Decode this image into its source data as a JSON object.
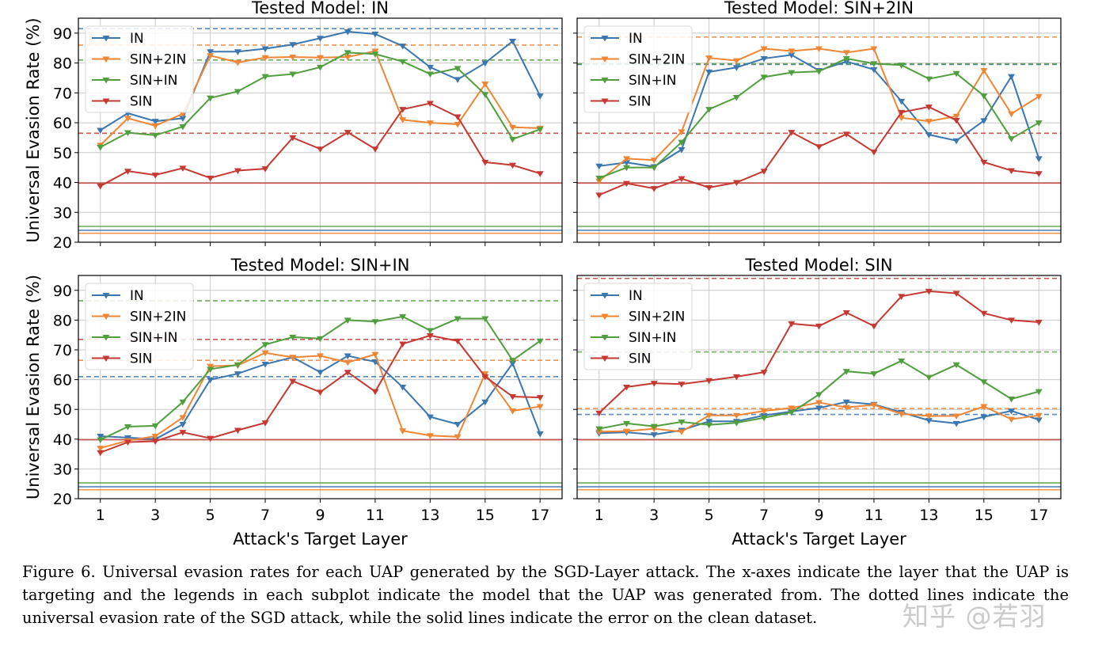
{
  "figure": {
    "x_label": "Attack's Target Layer",
    "y_label": "Universal Evasion Rate (%)",
    "caption": "Figure 6. Universal evasion rates for each UAP generated by the SGD-Layer attack. The x-axes indicate the layer that the UAP is targeting and the legends in each subplot indicate the model that the UAP was generated from. The dotted lines indicate the universal evasion rate of the SGD attack, while the solid lines indicate the error on the clean dataset.",
    "watermark": "知乎 @若羽"
  },
  "colors": {
    "IN": "#3b76af",
    "SIN+2IN": "#ef8636",
    "SIN+IN": "#519e3e",
    "SIN": "#c53932"
  },
  "chart_data": [
    {
      "type": "line",
      "title": "Tested Model: IN",
      "xlabel": "",
      "ylabel": "Universal Evasion Rate (%)",
      "xlim": [
        0.2,
        17.8
      ],
      "ylim": [
        20,
        95
      ],
      "xticks": [
        1,
        3,
        5,
        7,
        9,
        11,
        13,
        15,
        17
      ],
      "yticks": [
        20,
        30,
        40,
        50,
        60,
        70,
        80,
        90
      ],
      "grid": true,
      "legend_position": "top-left",
      "x": [
        1,
        2,
        3,
        4,
        5,
        6,
        7,
        8,
        9,
        10,
        11,
        12,
        13,
        14,
        15,
        16,
        17
      ],
      "series": [
        {
          "name": "IN",
          "values": [
            57.5,
            63.2,
            60.5,
            61.5,
            83.8,
            83.8,
            84.8,
            86.2,
            88.3,
            90.5,
            89.7,
            85.7,
            78.6,
            74.5,
            80.0,
            87.3,
            69.0
          ]
        },
        {
          "name": "SIN+2IN",
          "values": [
            52.5,
            61.5,
            59.0,
            63.0,
            82.5,
            80.2,
            81.8,
            82.0,
            81.8,
            82.0,
            84.0,
            61.0,
            60.0,
            59.5,
            73.0,
            58.5,
            58.2
          ]
        },
        {
          "name": "SIN+IN",
          "values": [
            51.8,
            56.7,
            55.8,
            58.7,
            68.3,
            70.5,
            75.5,
            76.3,
            78.6,
            83.5,
            83.0,
            80.5,
            76.3,
            78.2,
            69.5,
            54.5,
            57.8
          ]
        },
        {
          "name": "SIN",
          "values": [
            38.8,
            43.8,
            42.5,
            44.8,
            41.5,
            44.0,
            44.6,
            55.0,
            51.2,
            56.8,
            51.2,
            64.5,
            66.5,
            62.0,
            46.8,
            45.8,
            43.0
          ]
        }
      ],
      "reference_lines": [
        {
          "series": "IN",
          "style": "dashed",
          "value": 91.5
        },
        {
          "series": "SIN+2IN",
          "style": "dashed",
          "value": 86.0
        },
        {
          "series": "SIN+IN",
          "style": "dashed",
          "value": 81.0
        },
        {
          "series": "SIN",
          "style": "dashed",
          "value": 56.5
        },
        {
          "series": "SIN",
          "style": "solid",
          "value": 39.8
        },
        {
          "series": "SIN+IN",
          "style": "solid",
          "value": 25.3
        },
        {
          "series": "IN",
          "style": "solid",
          "value": 24.0
        },
        {
          "series": "SIN+2IN",
          "style": "solid",
          "value": 23.0
        }
      ]
    },
    {
      "type": "line",
      "title": "Tested Model: SIN+2IN",
      "xlabel": "",
      "ylabel": "",
      "xlim": [
        0.2,
        17.8
      ],
      "ylim": [
        20,
        95
      ],
      "xticks": [
        1,
        3,
        5,
        7,
        9,
        11,
        13,
        15,
        17
      ],
      "yticks": [
        20,
        30,
        40,
        50,
        60,
        70,
        80,
        90
      ],
      "grid": true,
      "legend_position": "top-left",
      "x": [
        1,
        2,
        3,
        4,
        5,
        6,
        7,
        8,
        9,
        10,
        11,
        12,
        13,
        14,
        15,
        16,
        17
      ],
      "series": [
        {
          "name": "IN",
          "values": [
            45.5,
            46.7,
            45.3,
            51.0,
            77.0,
            78.5,
            81.5,
            82.7,
            77.5,
            80.5,
            77.8,
            67.2,
            56.0,
            54.0,
            60.7,
            75.5,
            48.0
          ]
        },
        {
          "name": "SIN+2IN",
          "values": [
            40.5,
            48.0,
            47.5,
            57.0,
            81.7,
            80.8,
            84.8,
            84.0,
            84.8,
            83.5,
            84.8,
            61.7,
            60.5,
            62.2,
            77.5,
            63.0,
            68.8
          ]
        },
        {
          "name": "SIN+IN",
          "values": [
            41.5,
            45.0,
            45.0,
            53.5,
            64.5,
            68.5,
            75.3,
            76.8,
            77.2,
            81.5,
            79.8,
            79.3,
            74.7,
            76.5,
            69.0,
            54.7,
            60.0
          ]
        },
        {
          "name": "SIN",
          "values": [
            35.8,
            39.7,
            38.0,
            41.3,
            38.3,
            40.0,
            43.8,
            56.8,
            52.0,
            56.2,
            50.2,
            63.5,
            65.3,
            60.8,
            46.8,
            44.0,
            43.0
          ]
        }
      ],
      "reference_lines": [
        {
          "series": "SIN+2IN",
          "style": "dashed",
          "value": 88.7
        },
        {
          "series": "IN",
          "style": "dashed",
          "value": 79.5
        },
        {
          "series": "SIN+IN",
          "style": "dashed",
          "value": 79.7
        },
        {
          "series": "SIN",
          "style": "dashed",
          "value": 56.5
        },
        {
          "series": "SIN",
          "style": "solid",
          "value": 39.8
        },
        {
          "series": "SIN+IN",
          "style": "solid",
          "value": 25.3
        },
        {
          "series": "IN",
          "style": "solid",
          "value": 24.0
        },
        {
          "series": "SIN+2IN",
          "style": "solid",
          "value": 23.0
        }
      ]
    },
    {
      "type": "line",
      "title": "Tested Model: SIN+IN",
      "xlabel": "Attack's Target Layer",
      "ylabel": "Universal Evasion Rate (%)",
      "xlim": [
        0.2,
        17.8
      ],
      "ylim": [
        20,
        95
      ],
      "xticks": [
        1,
        3,
        5,
        7,
        9,
        11,
        13,
        15,
        17
      ],
      "yticks": [
        20,
        30,
        40,
        50,
        60,
        70,
        80,
        90
      ],
      "grid": true,
      "legend_position": "top-left",
      "x": [
        1,
        2,
        3,
        4,
        5,
        6,
        7,
        8,
        9,
        10,
        11,
        12,
        13,
        14,
        15,
        16,
        17
      ],
      "series": [
        {
          "name": "IN",
          "values": [
            41.0,
            40.5,
            40.0,
            45.0,
            60.0,
            62.0,
            65.2,
            67.5,
            62.5,
            68.0,
            66.0,
            57.5,
            47.5,
            45.0,
            52.5,
            65.5,
            41.8
          ]
        },
        {
          "name": "SIN+2IN",
          "values": [
            37.0,
            39.5,
            41.0,
            47.3,
            64.5,
            64.8,
            69.0,
            67.5,
            68.0,
            65.8,
            68.5,
            42.8,
            41.2,
            40.8,
            62.0,
            49.5,
            51.0
          ]
        },
        {
          "name": "SIN+IN",
          "values": [
            39.8,
            44.2,
            44.5,
            52.5,
            63.5,
            65.0,
            71.8,
            74.3,
            73.8,
            80.0,
            79.5,
            81.2,
            76.5,
            80.5,
            80.5,
            66.5,
            73.0
          ]
        },
        {
          "name": "SIN",
          "values": [
            35.5,
            39.0,
            39.3,
            42.3,
            40.3,
            43.0,
            45.5,
            59.5,
            55.8,
            62.5,
            56.0,
            72.0,
            74.8,
            73.0,
            61.0,
            54.3,
            54.0
          ]
        }
      ],
      "reference_lines": [
        {
          "series": "SIN+IN",
          "style": "dashed",
          "value": 86.5
        },
        {
          "series": "SIN",
          "style": "dashed",
          "value": 73.5
        },
        {
          "series": "SIN+2IN",
          "style": "dashed",
          "value": 66.5
        },
        {
          "series": "IN",
          "style": "dashed",
          "value": 61.0
        },
        {
          "series": "SIN",
          "style": "solid",
          "value": 39.8
        },
        {
          "series": "SIN+IN",
          "style": "solid",
          "value": 25.3
        },
        {
          "series": "IN",
          "style": "solid",
          "value": 24.0
        },
        {
          "series": "SIN+2IN",
          "style": "solid",
          "value": 23.0
        }
      ]
    },
    {
      "type": "line",
      "title": "Tested Model: SIN",
      "xlabel": "Attack's Target Layer",
      "ylabel": "",
      "xlim": [
        0.2,
        17.8
      ],
      "ylim": [
        20,
        95
      ],
      "xticks": [
        1,
        3,
        5,
        7,
        9,
        11,
        13,
        15,
        17
      ],
      "yticks": [
        20,
        30,
        40,
        50,
        60,
        70,
        80,
        90
      ],
      "grid": true,
      "legend_position": "top-left",
      "x": [
        1,
        2,
        3,
        4,
        5,
        6,
        7,
        8,
        9,
        10,
        11,
        12,
        13,
        14,
        15,
        16,
        17
      ],
      "series": [
        {
          "name": "IN",
          "values": [
            42.0,
            42.3,
            41.5,
            43.0,
            46.0,
            46.0,
            48.0,
            49.3,
            50.5,
            52.5,
            51.7,
            49.0,
            46.3,
            45.3,
            47.5,
            49.5,
            46.5
          ]
        },
        {
          "name": "SIN+2IN",
          "values": [
            42.5,
            42.7,
            43.5,
            42.5,
            48.0,
            48.0,
            49.5,
            50.5,
            52.3,
            50.7,
            51.5,
            48.5,
            47.8,
            47.8,
            51.0,
            46.7,
            48.0
          ]
        },
        {
          "name": "SIN+IN",
          "values": [
            43.5,
            45.3,
            44.3,
            45.8,
            44.8,
            45.5,
            47.2,
            49.0,
            55.0,
            62.8,
            62.0,
            66.3,
            60.8,
            65.0,
            59.3,
            53.5,
            56.0
          ]
        },
        {
          "name": "SIN",
          "values": [
            48.8,
            57.5,
            58.8,
            58.5,
            59.7,
            61.0,
            62.5,
            78.8,
            78.0,
            82.5,
            78.0,
            88.0,
            89.7,
            89.0,
            82.3,
            80.0,
            79.3
          ]
        }
      ],
      "reference_lines": [
        {
          "series": "SIN",
          "style": "dashed",
          "value": 94.0
        },
        {
          "series": "SIN+IN",
          "style": "dashed",
          "value": 69.3
        },
        {
          "series": "SIN+2IN",
          "style": "dashed",
          "value": 50.3
        },
        {
          "series": "IN",
          "style": "dashed",
          "value": 48.3
        },
        {
          "series": "SIN",
          "style": "solid",
          "value": 39.8
        },
        {
          "series": "SIN+IN",
          "style": "solid",
          "value": 25.3
        },
        {
          "series": "IN",
          "style": "solid",
          "value": 24.0
        },
        {
          "series": "SIN+2IN",
          "style": "solid",
          "value": 23.0
        }
      ]
    }
  ]
}
